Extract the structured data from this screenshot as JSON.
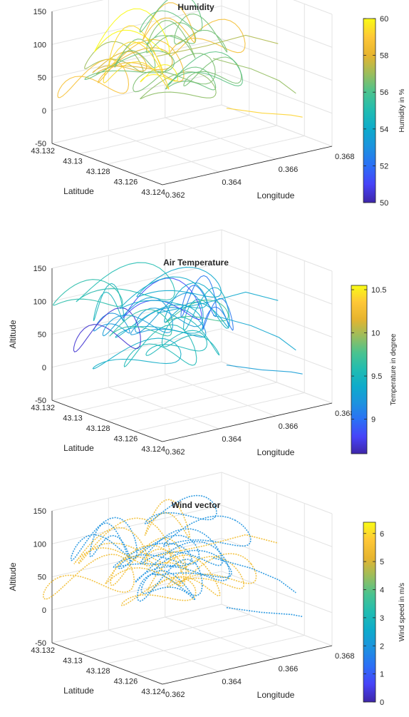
{
  "chart_data": [
    {
      "type": "line3d",
      "title": "Humidity",
      "xlabel": "Longitude",
      "ylabel": "Latitude",
      "zlabel": "",
      "xlim": [
        0.362,
        0.368
      ],
      "ylim": [
        43.124,
        43.132
      ],
      "zlim": [
        -50,
        150
      ],
      "xticks": [
        "0.362",
        "0.364",
        "0.366",
        "0.368"
      ],
      "yticks": [
        "43.124",
        "43.126",
        "43.128",
        "43.13",
        "43.132"
      ],
      "zticks": [
        "-50",
        "0",
        "50",
        "100",
        "150"
      ],
      "grid": true,
      "colorbar": {
        "label": "Humidity in %",
        "range": [
          50,
          60
        ],
        "ticks": [
          "50",
          "52",
          "54",
          "56",
          "58",
          "60"
        ]
      }
    },
    {
      "type": "line3d",
      "title": "Air Temperature",
      "xlabel": "Longitude",
      "ylabel": "Latitude",
      "zlabel": "Altitude",
      "xlim": [
        0.362,
        0.368
      ],
      "ylim": [
        43.124,
        43.132
      ],
      "zlim": [
        -50,
        150
      ],
      "xticks": [
        "0.362",
        "0.364",
        "0.366",
        "0.368"
      ],
      "yticks": [
        "43.124",
        "43.126",
        "43.128",
        "43.13",
        "43.132"
      ],
      "zticks": [
        "-50",
        "0",
        "50",
        "100",
        "150"
      ],
      "grid": true,
      "colorbar": {
        "label": "Temperature in degree",
        "range": [
          8.6,
          10.55
        ],
        "ticks": [
          "9",
          "9.5",
          "10",
          "10.5"
        ]
      }
    },
    {
      "type": "quiver3d",
      "title": "Wind vector",
      "xlabel": "Longitude",
      "ylabel": "Latitude",
      "zlabel": "Altitude",
      "xlim": [
        0.362,
        0.368
      ],
      "ylim": [
        43.124,
        43.132
      ],
      "zlim": [
        -50,
        150
      ],
      "xticks": [
        "0.362",
        "0.364",
        "0.366",
        "0.368"
      ],
      "yticks": [
        "43.124",
        "43.126",
        "43.128",
        "43.13",
        "43.132"
      ],
      "zticks": [
        "-50",
        "0",
        "50",
        "100",
        "150"
      ],
      "grid": true,
      "colorbar": {
        "label": "Wind speed in m/s",
        "range": [
          0,
          6.4
        ],
        "ticks": [
          "0",
          "1",
          "2",
          "3",
          "4",
          "5",
          "6"
        ]
      }
    }
  ],
  "colormap": [
    "#3e26a8",
    "#4743f8",
    "#2c6ff6",
    "#1d92df",
    "#0eabcb",
    "#21bcb1",
    "#4ac38f",
    "#9bbd5c",
    "#e6b42f",
    "#fec737",
    "#f9fb15"
  ]
}
